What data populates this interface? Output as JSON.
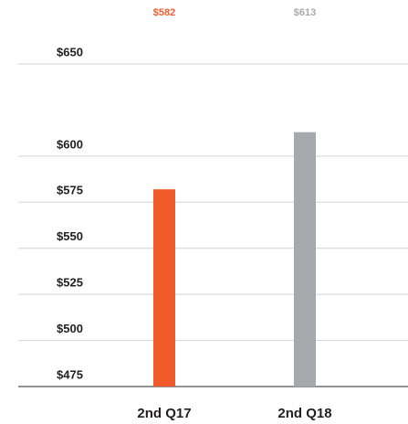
{
  "chart_data": {
    "type": "bar",
    "categories": [
      "2nd Q17",
      "2nd Q18"
    ],
    "values": [
      582,
      613
    ],
    "value_labels": [
      "$582",
      "$613"
    ],
    "colors": [
      "#f15a2b",
      "#a7a8ab"
    ],
    "ylim": [
      475,
      650
    ],
    "yticks": [
      {
        "value": 475,
        "label": "$475"
      },
      {
        "value": 500,
        "label": "$500"
      },
      {
        "value": 525,
        "label": "$525"
      },
      {
        "value": 550,
        "label": "$550"
      },
      {
        "value": 575,
        "label": "$575"
      },
      {
        "value": 600,
        "label": "$600"
      },
      {
        "value": 650,
        "label": "$650"
      }
    ],
    "grid": true
  }
}
